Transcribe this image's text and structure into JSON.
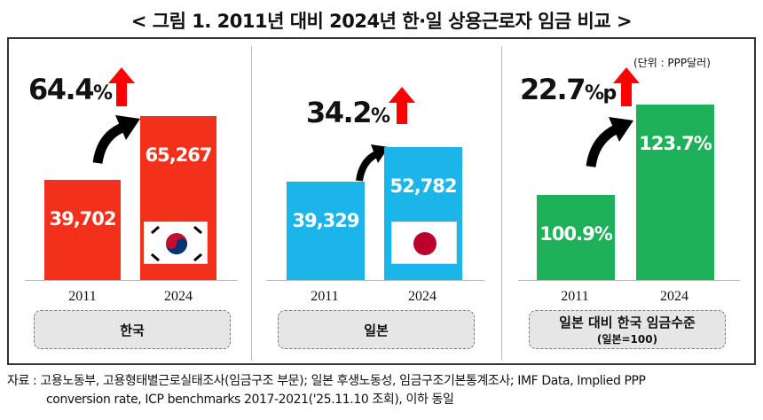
{
  "title": "< 그림 1. 2011년 대비 2024년 한·일 상용근로자 임금 비교 >",
  "unit": "(단위 : PPP달러)",
  "colors": {
    "korea": "#f3311a",
    "japan": "#1cb5ea",
    "ratio": "#1eb159",
    "arrow": "#ff0000"
  },
  "chart_data": [
    {
      "type": "bar",
      "name": "한국",
      "categories": [
        "2011",
        "2024"
      ],
      "values": [
        39702,
        65267
      ],
      "labels": [
        "39,702",
        "65,267"
      ],
      "change": "64.4",
      "change_unit": "%"
    },
    {
      "type": "bar",
      "name": "일본",
      "categories": [
        "2011",
        "2024"
      ],
      "values": [
        39329,
        52782
      ],
      "labels": [
        "39,329",
        "52,782"
      ],
      "change": "34.2",
      "change_unit": "%"
    },
    {
      "type": "bar",
      "name": "일본 대비 한국 임금수준",
      "subname": "(일본=100)",
      "categories": [
        "2011",
        "2024"
      ],
      "values": [
        100.9,
        123.7
      ],
      "labels": [
        "100.9%",
        "123.7%"
      ],
      "change": "22.7",
      "change_unit": "%p"
    }
  ],
  "source": {
    "line1": "자료 : 고용노동부, 고용형태별근로실태조사(임금구조 부문); 일본 후생노동성, 임금구조기본통계조사; IMF Data, Implied PPP",
    "line2": "conversion rate, ICP benchmarks 2017-2021('25.11.10 조회), 이하 동일"
  }
}
